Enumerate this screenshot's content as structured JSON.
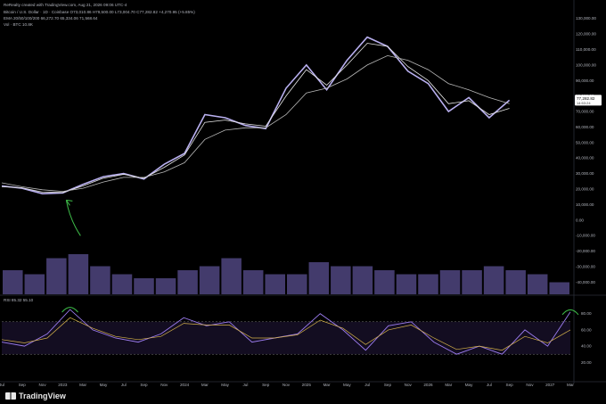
{
  "header": {
    "line0": "ReRealty created with TradingView.com, Aug 21, 2026 09:06 UTC-4",
    "line1": "Bitcoin / U.S. Dollar · 1D · Coinbase  O73,010.86  H79,500.00  L73,004.70  C77,282.82  +4,270.95 (+5.85%)",
    "line2": "EMA 20/50/100/200  66,272.70  65,334.06  71,568.64",
    "line3": "Vol · BTC  10.8K",
    "rsi_label": "RSI  85.32  55.10"
  },
  "brand": {
    "name": "TradingView",
    "logo_icon": "tradingview-logo-icon"
  },
  "colors": {
    "background": "#000000",
    "candles": "#b9b0f0",
    "ema_fast": "#e6e6e6",
    "ema_slow": "#b7b7b7",
    "volume": "#7a6cc4",
    "rsi": "#9c7cf0",
    "rsi_ma": "#d4b14a",
    "annotation": "#3fbf4a",
    "price_badge": "#ffffff",
    "vol_badge": "#e5484d"
  },
  "chart_data": [
    {
      "type": "line",
      "title": "",
      "x": [
        "Jul",
        "Sep",
        "Nov",
        "2023",
        "Mar",
        "May",
        "Jul",
        "Sep",
        "Nov",
        "2024",
        "Mar",
        "May",
        "Jul",
        "Sep",
        "Nov",
        "2025",
        "Mar",
        "May",
        "Jul",
        "Sep",
        "Nov",
        "2026",
        "Mar",
        "May",
        "Jul",
        "Sep",
        "Nov",
        "2027",
        "Mar"
      ],
      "series": [
        {
          "name": "",
          "values": [
            22000,
            20500,
            17000,
            17500,
            23000,
            28000,
            30000,
            26500,
            36000,
            43000,
            68000,
            66000,
            61000,
            59000,
            85000,
            100000,
            84000,
            103000,
            118000,
            112000,
            96000,
            88000,
            70000,
            79000,
            66000,
            77282.82,
            null,
            null,
            null
          ]
        },
        {
          "name": "",
          "values": [
            21500,
            20800,
            18000,
            17800,
            22000,
            27000,
            29500,
            27000,
            34000,
            42000,
            63000,
            64500,
            62000,
            60500,
            80000,
            97000,
            87000,
            100000,
            114000,
            112000,
            99000,
            90000,
            75000,
            77000,
            68000,
            72000,
            null,
            null,
            null
          ]
        },
        {
          "name": "",
          "values": [
            24000,
            21500,
            19500,
            18500,
            20500,
            24500,
            27500,
            27500,
            31000,
            37000,
            52000,
            58000,
            59500,
            59500,
            68000,
            82000,
            85000,
            91000,
            100000,
            106000,
            103000,
            97000,
            88000,
            84000,
            79000,
            75000,
            null,
            null,
            null
          ]
        }
      ],
      "last_price": "77,282.82",
      "last_price_badge": "77,282.82",
      "countdown": "14:53:24",
      "y_ticks": [
        "130,000.00",
        "120,000.00",
        "110,000.00",
        "100,000.00",
        "90,000.00",
        "80,000.00",
        "70,000.00",
        "60,000.00",
        "50,000.00",
        "40,000.00",
        "30,000.00",
        "20,000.00",
        "10,000.00",
        "0.00",
        "-10,000.00",
        "-20,000.00",
        "-30,000.00",
        "-40,000.00"
      ],
      "ylim": [
        -45000,
        135000
      ],
      "grid": false
    },
    {
      "type": "bar",
      "title": "",
      "series": [
        {
          "name": "",
          "values": [
            0.6,
            0.5,
            0.9,
            1.0,
            0.7,
            0.5,
            0.4,
            0.4,
            0.6,
            0.7,
            0.9,
            0.6,
            0.5,
            0.5,
            0.8,
            0.7,
            0.7,
            0.6,
            0.5,
            0.5,
            0.6,
            0.6,
            0.7,
            0.6,
            0.5,
            0.3
          ]
        }
      ]
    },
    {
      "type": "line",
      "title": "",
      "series": [
        {
          "name": "",
          "values": [
            45,
            40,
            55,
            85,
            60,
            50,
            45,
            55,
            75,
            65,
            70,
            45,
            50,
            55,
            80,
            60,
            35,
            65,
            70,
            45,
            30,
            40,
            30,
            60,
            40,
            82
          ]
        },
        {
          "name": "",
          "values": [
            48,
            44,
            50,
            75,
            62,
            52,
            48,
            52,
            68,
            66,
            66,
            50,
            50,
            54,
            72,
            62,
            42,
            60,
            66,
            50,
            36,
            40,
            35,
            52,
            44,
            60
          ]
        }
      ],
      "y_ticks": [
        "80.00",
        "60.00",
        "40.00",
        "20.00"
      ],
      "levels": [
        70,
        30
      ],
      "ylim": [
        5,
        95
      ]
    }
  ]
}
